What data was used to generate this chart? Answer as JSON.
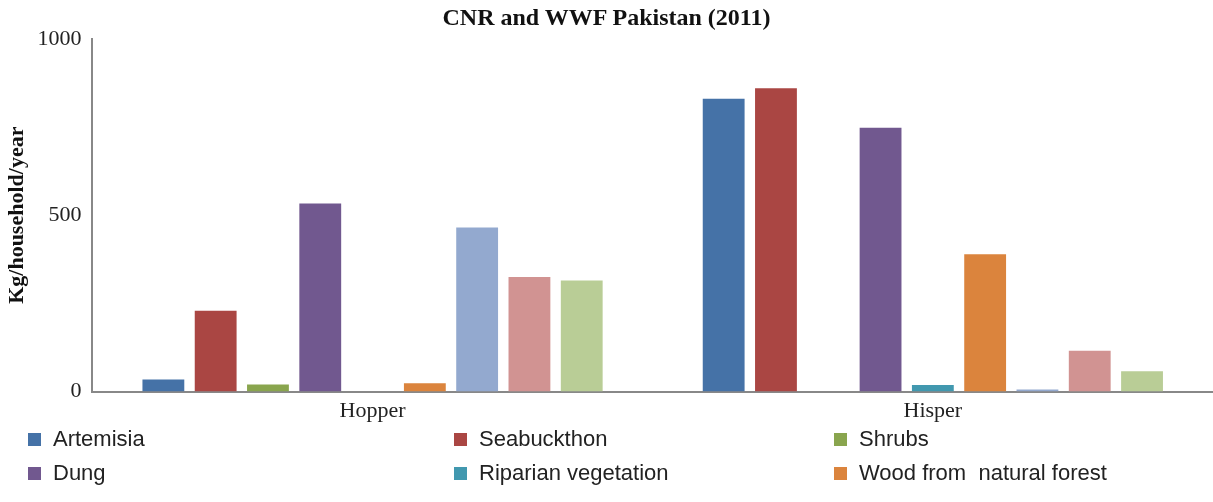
{
  "chart_data": {
    "type": "bar",
    "title": "CNR and WWF Pakistan (2011)",
    "ylabel": "Kg/household/year",
    "categories": [
      "Hopper",
      "Hisper"
    ],
    "series": [
      {
        "name": "Artemisia",
        "color": "#4572a7",
        "values": [
          34,
          830
        ]
      },
      {
        "name": "Seabuckthon",
        "color": "#aa4643",
        "values": [
          229,
          860
        ]
      },
      {
        "name": "Shrubs",
        "color": "#89a54e",
        "values": [
          20,
          0
        ]
      },
      {
        "name": "Dung",
        "color": "#71588f",
        "values": [
          533,
          748
        ]
      },
      {
        "name": "Riparian vegetation",
        "color": "#4198af",
        "values": [
          0,
          19
        ]
      },
      {
        "name": "Wood from  natural forest",
        "color": "#db843d",
        "values": [
          24,
          389
        ]
      },
      {
        "color": "#93a9cf",
        "values": [
          465,
          6
        ]
      },
      {
        "color": "#d19392",
        "values": [
          325,
          116
        ]
      },
      {
        "color": "#b9cd96",
        "values": [
          315,
          58
        ]
      }
    ],
    "ylim": [
      0,
      1000
    ],
    "yticks": [
      0,
      500,
      1000
    ],
    "grid": false,
    "legend": "bottom"
  }
}
